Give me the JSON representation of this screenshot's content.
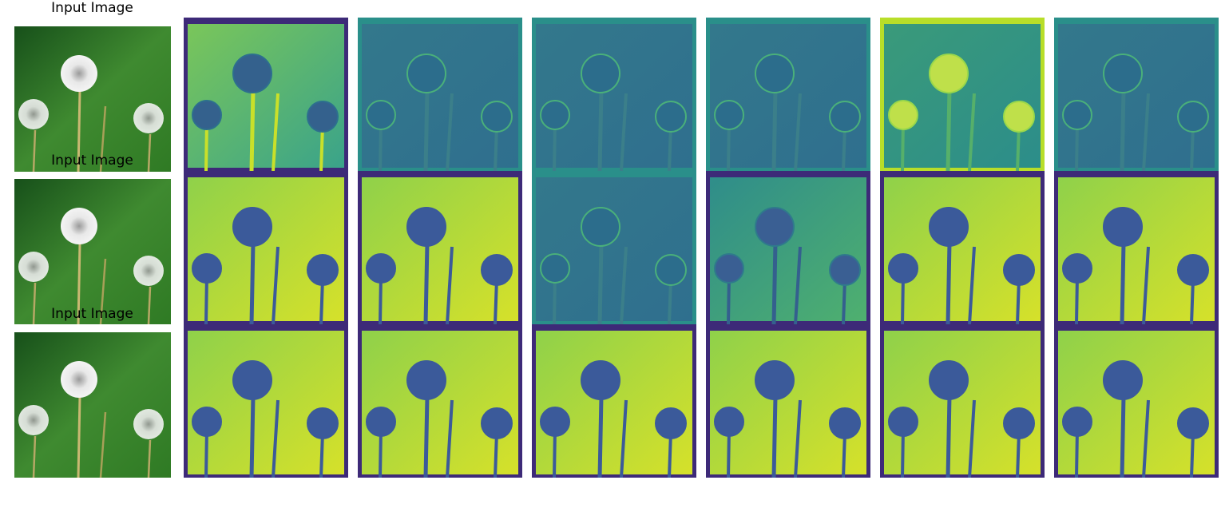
{
  "rows": [
    {
      "title": "Input Image"
    },
    {
      "title": "Input Image"
    },
    {
      "title": "Input Image"
    }
  ],
  "colors": {
    "viridis_dark": "#440154",
    "viridis_mid": "#3b6f8d",
    "viridis_teal": "#2a8d8b",
    "viridis_green": "#5ec962",
    "viridis_yellow": "#e8e419",
    "grass_dark": "#1e5a1a",
    "grass_light": "#4f9a3a",
    "flower_white": "#e8e8e8"
  }
}
